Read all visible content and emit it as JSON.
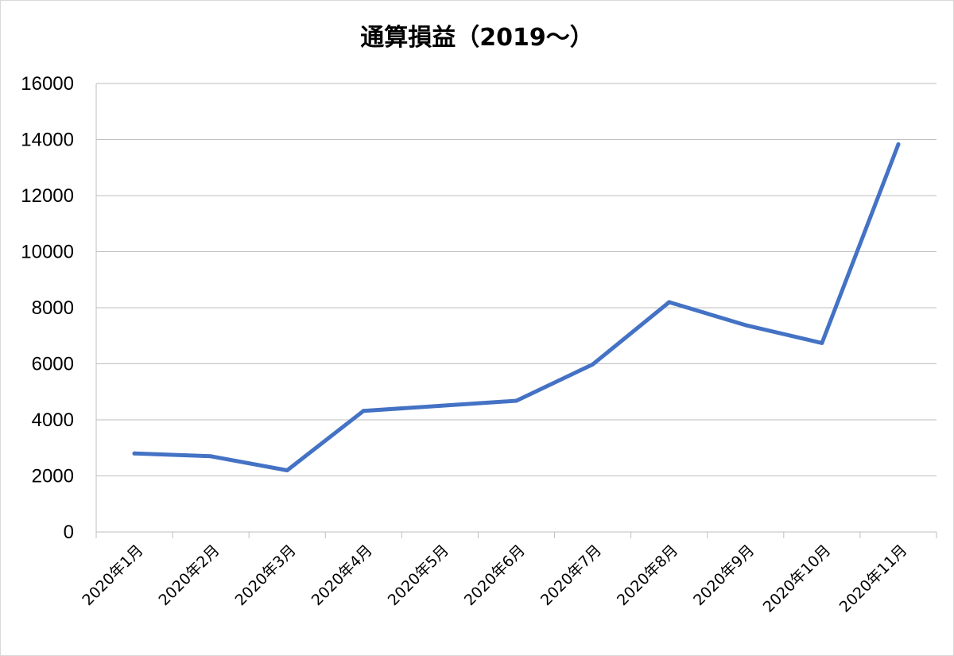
{
  "chart_data": {
    "type": "line",
    "title": "通算損益（2019～）",
    "xlabel": "",
    "ylabel": "",
    "categories": [
      "2020年1月",
      "2020年2月",
      "2020年3月",
      "2020年4月",
      "2020年5月",
      "2020年6月",
      "2020年7月",
      "2020年8月",
      "2020年9月",
      "2020年10月",
      "2020年11月"
    ],
    "series": [
      {
        "values": [
          2800,
          2700,
          2200,
          4320,
          4500,
          4680,
          5980,
          8200,
          7380,
          6740,
          13830
        ]
      }
    ],
    "ylim": [
      0,
      16000
    ],
    "yticks": [
      "0",
      "2000",
      "4000",
      "6000",
      "8000",
      "10000",
      "12000",
      "14000",
      "16000"
    ],
    "grid": true,
    "legend": "none",
    "line_color": "#4472C4",
    "grid_color": "#bfbfbf"
  }
}
